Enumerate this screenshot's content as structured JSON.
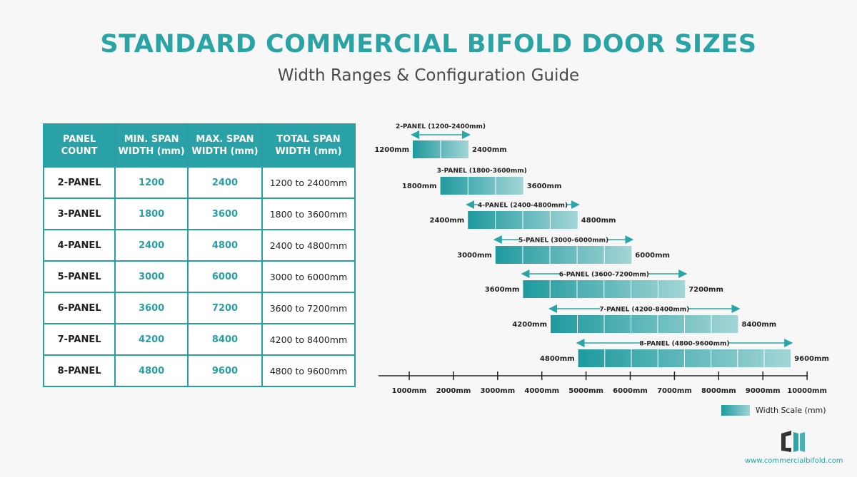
{
  "header": {
    "title": "STANDARD COMMERCIAL BIFOLD DOOR SIZES",
    "subtitle": "Width Ranges & Configuration Guide"
  },
  "table": {
    "columns": [
      "PANEL COUNT",
      "MIN. SPAN WIDTH (mm)",
      "MAX. SPAN WIDTH (mm)",
      "TOTAL SPAN WIDTH (mm)"
    ],
    "columns_lines": [
      [
        "PANEL",
        "COUNT"
      ],
      [
        "MIN. SPAN",
        "WIDTH (mm)"
      ],
      [
        "MAX. SPAN",
        "WIDTH (mm)"
      ],
      [
        "TOTAL SPAN",
        "WIDTH (mm)"
      ]
    ],
    "rows": [
      [
        "2-PANEL",
        "1200",
        "2400",
        "1200 to 2400mm"
      ],
      [
        "3-PANEL",
        "1800",
        "3600",
        "1800 to 3600mm"
      ],
      [
        "4-PANEL",
        "2400",
        "4800",
        "2400 to 4800mm"
      ],
      [
        "5-PANEL",
        "3000",
        "6000",
        "3000 to 6000mm"
      ],
      [
        "6-PANEL",
        "3600",
        "7200",
        "3600 to 7200mm"
      ],
      [
        "7-PANEL",
        "4200",
        "8400",
        "4200 to 8400mm"
      ],
      [
        "8-PANEL",
        "4800",
        "9600",
        "4800 to 9600mm"
      ]
    ]
  },
  "chart_data": {
    "type": "bar",
    "orientation": "horizontal-range",
    "series": [
      {
        "label": "2-PANEL (1200-2400mm)",
        "panels": 2,
        "min": 1200,
        "max": 2400,
        "min_label": "1200mm",
        "max_label": "2400mm"
      },
      {
        "label": "3-PANEL (1800-3600mm)",
        "panels": 3,
        "min": 1800,
        "max": 3600,
        "min_label": "1800mm",
        "max_label": "3600mm"
      },
      {
        "label": "4-PANEL (2400-4800mm)",
        "panels": 4,
        "min": 2400,
        "max": 4800,
        "min_label": "2400mm",
        "max_label": "4800mm"
      },
      {
        "label": "5-PANEL (3000-6000mm)",
        "panels": 5,
        "min": 3000,
        "max": 6000,
        "min_label": "3000mm",
        "max_label": "6000mm"
      },
      {
        "label": "6-PANEL (3600-7200mm)",
        "panels": 6,
        "min": 3600,
        "max": 7200,
        "min_label": "3600mm",
        "max_label": "7200mm"
      },
      {
        "label": "7-PANEL (4200-8400mm)",
        "panels": 7,
        "min": 4200,
        "max": 8400,
        "min_label": "4200mm",
        "max_label": "8400mm"
      },
      {
        "label": "8-PANEL (4800-9600mm)",
        "panels": 8,
        "min": 4800,
        "max": 9600,
        "min_label": "4800mm",
        "max_label": "9600mm"
      }
    ],
    "x_ticks": [
      "1000mm",
      "2000mm",
      "3000mm",
      "4000mm",
      "5000mm",
      "6000mm",
      "7000mm",
      "8000mm",
      "9000mm",
      "10000mm"
    ],
    "xlim": [
      1000,
      10000
    ],
    "legend": {
      "label": "Width Scale (mm)",
      "position": "bottom-right"
    },
    "colors": {
      "bar_start": "#1f9a9e",
      "bar_end": "#a3d5d6",
      "arrow": "#2aa5a6"
    }
  },
  "footer": {
    "url": "www.commercialbifold.com"
  },
  "colors": {
    "accent": "#2aa3a5",
    "header_bg": "#2aa1a6"
  }
}
